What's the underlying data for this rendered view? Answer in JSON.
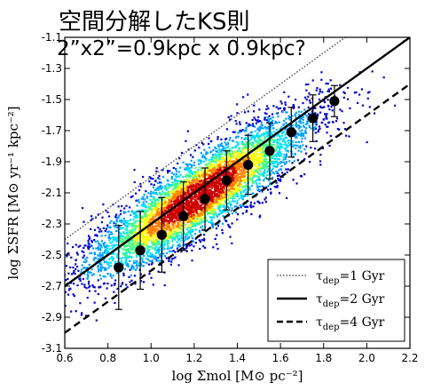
{
  "title": "空間分解したKS則",
  "subtitle": "2”x2”=0.9kpc x 0.9kpc?",
  "chart_data": {
    "type": "scatter",
    "xlabel": "log Σmol [M⊙ pc⁻²]",
    "ylabel": "log ΣSFR [M⊙ yr⁻¹ kpc⁻²]",
    "xlim": [
      0.6,
      2.2
    ],
    "ylim": [
      -3.1,
      -1.1
    ],
    "x_ticks": [
      "0.6",
      "0.8",
      "1.0",
      "1.2",
      "1.4",
      "1.6",
      "1.8",
      "2.0",
      "2.2"
    ],
    "y_ticks": [
      "-1.1",
      "-1.3",
      "-1.5",
      "-1.7",
      "-1.9",
      "-2.1",
      "-2.3",
      "-2.5",
      "-2.7",
      "-2.9",
      "-3.1"
    ],
    "density_colormap": [
      "#0000cc",
      "#00a0ff",
      "#00e0ff",
      "#40ff80",
      "#ffff00",
      "#ff8000",
      "#cc0000"
    ],
    "density_ridge": {
      "x_range": [
        0.7,
        1.95
      ],
      "note": "pixel density scatter"
    },
    "binned_medians": {
      "x": [
        0.85,
        0.95,
        1.05,
        1.15,
        1.25,
        1.35,
        1.45,
        1.55,
        1.65,
        1.75,
        1.85
      ],
      "y": [
        -2.58,
        -2.47,
        -2.37,
        -2.25,
        -2.14,
        -2.02,
        -1.92,
        -1.83,
        -1.71,
        -1.62,
        -1.51
      ],
      "err": [
        0.27,
        0.25,
        0.24,
        0.22,
        0.2,
        0.19,
        0.19,
        0.18,
        0.16,
        0.15,
        0.1
      ]
    },
    "lines": [
      {
        "name": "τdep=1 Gyr",
        "style": "dotted",
        "y_at_0_6": -2.4,
        "slope": 1.0
      },
      {
        "name": "τdep=2 Gyr",
        "style": "solid",
        "y_at_0_6": -2.7,
        "slope": 1.0
      },
      {
        "name": "τdep=4 Gyr",
        "style": "dashed",
        "y_at_0_6": -3.0,
        "slope": 1.0
      }
    ],
    "legend": {
      "placement": "lower-right",
      "entries": [
        {
          "prefix": "τ",
          "sub": "dep",
          "suffix": "=1 Gyr",
          "style": "dotted"
        },
        {
          "prefix": "τ",
          "sub": "dep",
          "suffix": "=2 Gyr",
          "style": "solid"
        },
        {
          "prefix": "τ",
          "sub": "dep",
          "suffix": "=4 Gyr",
          "style": "dashed"
        }
      ]
    }
  }
}
